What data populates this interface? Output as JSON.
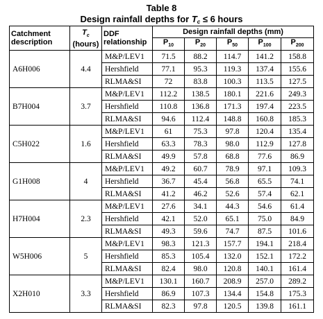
{
  "title": {
    "line1": "Table 8",
    "line2_prefix": "Design rainfall depths for ",
    "line2_var": "T",
    "line2_sub": "c",
    "line2_suffix": " ≤ 6 hours"
  },
  "headers": {
    "catchment": "Catchment description",
    "tc_var": "T",
    "tc_sub": "c",
    "tc_unit": "(hours)",
    "ddf": "DDF relationship",
    "depths": "Design rainfall depths (mm)",
    "p_letter": "P",
    "p_subs": [
      "10",
      "20",
      "50",
      "100",
      "200"
    ]
  },
  "groups": [
    {
      "catchment": "A6H006",
      "tc": "4.4",
      "rows": [
        {
          "rel": "M&P/LEV1",
          "values": [
            "71.5",
            "88.2",
            "114.7",
            "141.2",
            "158.8"
          ]
        },
        {
          "rel": "Hershfield",
          "values": [
            "77.1",
            "95.3",
            "119.3",
            "137.4",
            "155.6"
          ]
        },
        {
          "rel": "RLMA&SI",
          "values": [
            "72",
            "83.8",
            "100.3",
            "113.5",
            "127.5"
          ]
        }
      ]
    },
    {
      "catchment": "B7H004",
      "tc": "3.7",
      "rows": [
        {
          "rel": "M&P/LEV1",
          "values": [
            "112.2",
            "138.5",
            "180.1",
            "221.6",
            "249.3"
          ]
        },
        {
          "rel": "Hershfield",
          "values": [
            "110.8",
            "136.8",
            "171.3",
            "197.4",
            "223.5"
          ]
        },
        {
          "rel": "RLMA&SI",
          "values": [
            "94.6",
            "112.4",
            "148.8",
            "160.8",
            "185.3"
          ]
        }
      ]
    },
    {
      "catchment": "C5H022",
      "tc": "1.6",
      "rows": [
        {
          "rel": "M&P/LEV1",
          "values": [
            "61",
            "75.3",
            "97.8",
            "120.4",
            "135.4"
          ]
        },
        {
          "rel": "Hershfield",
          "values": [
            "63.3",
            "78.3",
            "98.0",
            "112.9",
            "127.8"
          ]
        },
        {
          "rel": "RLMA&SI",
          "values": [
            "49.9",
            "57.8",
            "68.8",
            "77.6",
            "86.9"
          ]
        }
      ]
    },
    {
      "catchment": "G1H008",
      "tc": "4",
      "rows": [
        {
          "rel": "M&P/LEV1",
          "values": [
            "49.2",
            "60.7",
            "78.9",
            "97.1",
            "109.3"
          ]
        },
        {
          "rel": "Hershfield",
          "values": [
            "36.7",
            "45.4",
            "56.8",
            "65.5",
            "74.1"
          ]
        },
        {
          "rel": "RLMA&SI",
          "values": [
            "41.2",
            "46.2",
            "52.6",
            "57.4",
            "62.1"
          ]
        }
      ]
    },
    {
      "catchment": "H7H004",
      "tc": "2.3",
      "rows": [
        {
          "rel": "M&P/LEV1",
          "values": [
            "27.6",
            "34.1",
            "44.3",
            "54.6",
            "61.4"
          ]
        },
        {
          "rel": "Hershfield",
          "values": [
            "42.1",
            "52.0",
            "65.1",
            "75.0",
            "84.9"
          ]
        },
        {
          "rel": "RLMA&SI",
          "values": [
            "49.3",
            "59.6",
            "74.7",
            "87.5",
            "101.6"
          ]
        }
      ]
    },
    {
      "catchment": "W5H006",
      "tc": "5",
      "rows": [
        {
          "rel": "M&P/LEV1",
          "values": [
            "98.3",
            "121.3",
            "157.7",
            "194.1",
            "218.4"
          ]
        },
        {
          "rel": "Hershfield",
          "values": [
            "85.3",
            "105.4",
            "132.0",
            "152.1",
            "172.2"
          ]
        },
        {
          "rel": "RLMA&SI",
          "values": [
            "82.4",
            "98.0",
            "120.8",
            "140.1",
            "161.4"
          ]
        }
      ]
    },
    {
      "catchment": "X2H010",
      "tc": "3.3",
      "rows": [
        {
          "rel": "M&P/LEV1",
          "values": [
            "130.1",
            "160.7",
            "208.9",
            "257.0",
            "289.2"
          ]
        },
        {
          "rel": "Hershfield",
          "values": [
            "86.9",
            "107.3",
            "134.4",
            "154.8",
            "175.3"
          ]
        },
        {
          "rel": "RLMA&SI",
          "values": [
            "82.3",
            "97.8",
            "120.5",
            "139.8",
            "161.1"
          ]
        }
      ]
    }
  ]
}
